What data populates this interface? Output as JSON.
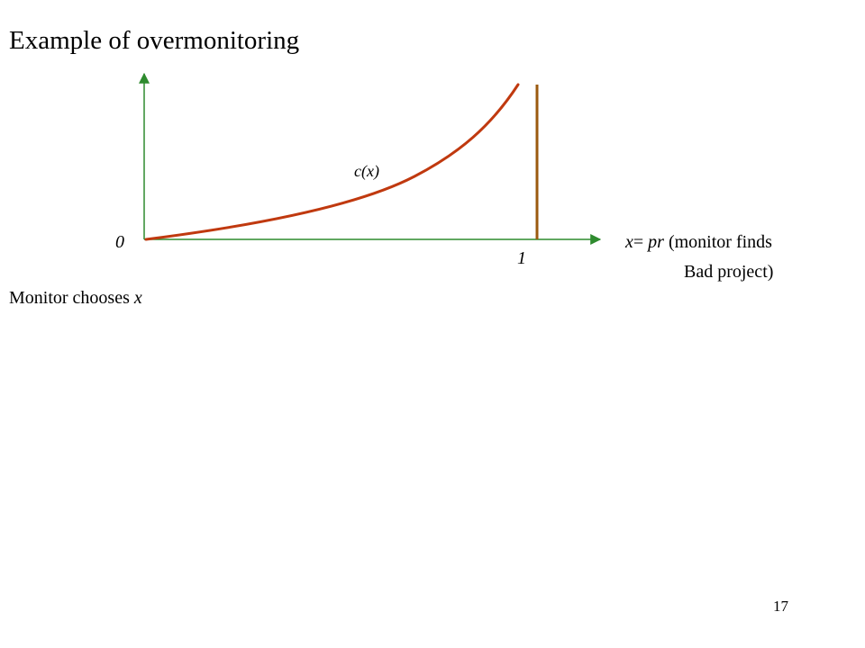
{
  "slide": {
    "title": "Example of overmonitoring",
    "page_number": "17"
  },
  "diagram": {
    "curve_label": "c(x)",
    "origin_label": "0",
    "vertical_line_label": "1",
    "x_axis_label": {
      "variable": "x",
      "equals": "= ",
      "expression": "pr",
      "description_line1": " (monitor finds",
      "description_line2": "Bad project)"
    },
    "colors": {
      "axes": "#2e8b2e",
      "curve": "#c0390f",
      "vertical_line": "#9b5a0f"
    }
  },
  "body_text": {
    "prefix": "Monitor chooses ",
    "variable": "x"
  }
}
